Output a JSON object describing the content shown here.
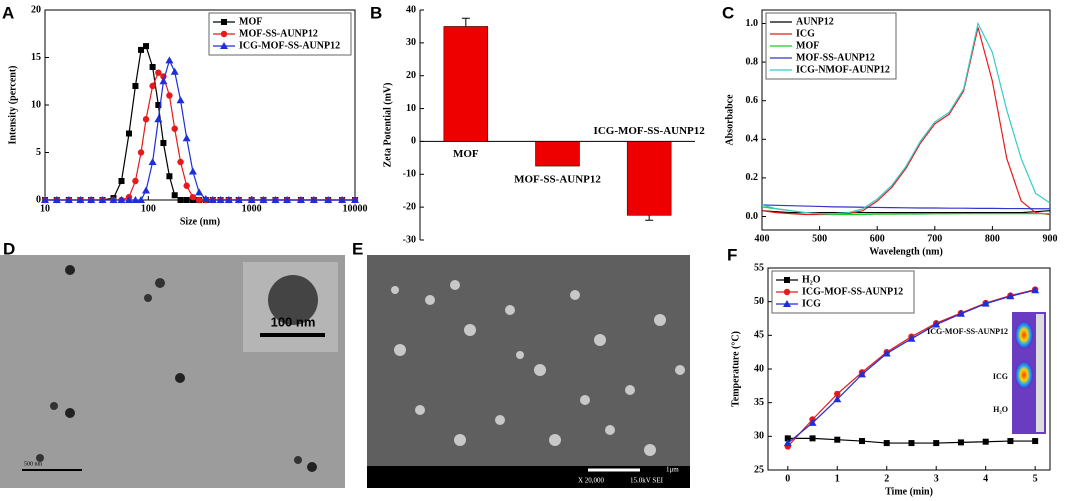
{
  "chart_data": [
    {
      "panel": "A",
      "type": "line",
      "xscale": "log",
      "xlabel": "Size (nm)",
      "ylabel": "Intensity (percent)",
      "xlim": [
        10,
        10000
      ],
      "xticks": [
        10,
        100,
        1000,
        10000
      ],
      "ylim": [
        0,
        20
      ],
      "yticks": [
        0,
        5,
        10,
        15,
        20
      ],
      "grid": false,
      "legend": "top-right",
      "x": [
        10,
        13,
        17,
        22,
        28,
        36,
        46,
        55,
        65,
        75,
        85,
        95,
        110,
        125,
        140,
        160,
        180,
        205,
        235,
        270,
        310,
        360,
        420,
        500,
        600,
        750,
        1000,
        1300,
        1700,
        2200,
        3000,
        4000,
        5500,
        7500,
        10000
      ],
      "series": [
        {
          "name": "MOF",
          "color": "#000000",
          "marker": "square",
          "values": [
            0,
            0,
            0,
            0,
            0,
            0,
            0.2,
            2,
            7,
            12,
            15.8,
            16.2,
            14,
            10,
            6,
            2.5,
            0.5,
            0,
            0,
            0,
            0,
            0,
            0,
            0,
            0,
            0,
            0,
            0,
            0,
            0,
            0,
            0,
            0,
            0,
            0
          ]
        },
        {
          "name": "MOF-SS-AUNP12",
          "color": "#e8191b",
          "marker": "circle",
          "values": [
            0,
            0,
            0,
            0,
            0,
            0,
            0,
            0,
            0.3,
            2,
            5,
            8.5,
            12,
            13.4,
            13,
            11,
            7.5,
            4,
            1.5,
            0.3,
            0,
            0,
            0,
            0,
            0,
            0,
            0,
            0,
            0,
            0,
            0,
            0,
            0,
            0,
            0
          ]
        },
        {
          "name": "ICG-MOF-SS-AUNP12",
          "color": "#1f2fd8",
          "marker": "triangle",
          "values": [
            0,
            0,
            0,
            0,
            0,
            0,
            0,
            0,
            0,
            0,
            0,
            1,
            4,
            8.5,
            12.5,
            14.7,
            13.5,
            10.5,
            6.5,
            3,
            0.8,
            0.1,
            0,
            0,
            0,
            0,
            0,
            0,
            0,
            0,
            0,
            0,
            0,
            0,
            0
          ]
        }
      ]
    },
    {
      "panel": "B",
      "type": "bar",
      "ylabel": "Zeta Potential (mV)",
      "color": "#ee0000",
      "categories": [
        "MOF",
        "MOF-SS-AUNP12",
        "ICG-MOF-SS-AUNP12"
      ],
      "values": [
        35,
        -7.5,
        -22.5
      ],
      "errors": [
        2.5,
        null,
        1.5
      ],
      "ylim": [
        -30,
        40
      ],
      "yticks": [
        -30,
        -20,
        -10,
        0,
        10,
        20,
        30,
        40
      ],
      "grid": false
    },
    {
      "panel": "C",
      "type": "line",
      "xlabel": "Wavelength (nm)",
      "ylabel": "Absorbabce",
      "xlim": [
        400,
        900
      ],
      "xticks": [
        400,
        500,
        600,
        700,
        800,
        900
      ],
      "ylim": [
        -0.07,
        1.07
      ],
      "yticks": [
        {
          "value": 0,
          "label": "0.0"
        },
        0.2,
        0.4,
        0.6,
        0.8,
        {
          "value": 1,
          "label": "1.0"
        }
      ],
      "grid": false,
      "legend": "top-left",
      "x": [
        400,
        425,
        450,
        475,
        500,
        525,
        550,
        575,
        600,
        625,
        650,
        675,
        700,
        725,
        750,
        775,
        800,
        825,
        850,
        875,
        900
      ],
      "series": [
        {
          "name": "AUNP12",
          "color": "#000000",
          "values": [
            0.03,
            0.025,
            0.02,
            0.02,
            0.02,
            0.02,
            0.02,
            0.02,
            0.02,
            0.02,
            0.02,
            0.02,
            0.02,
            0.02,
            0.02,
            0.02,
            0.02,
            0.02,
            0.02,
            0.025,
            0.03
          ]
        },
        {
          "name": "ICG",
          "color": "#e8191b",
          "values": [
            0.03,
            0.02,
            0.015,
            0.01,
            0.01,
            0.01,
            0.015,
            0.03,
            0.08,
            0.15,
            0.25,
            0.38,
            0.48,
            0.53,
            0.65,
            0.98,
            0.7,
            0.3,
            0.08,
            0.02,
            0.01
          ]
        },
        {
          "name": "MOF",
          "color": "#22cc22",
          "values": [
            0.05,
            0.04,
            0.03,
            0.02,
            0.015,
            0.01,
            0.01,
            0.01,
            0.012,
            0.012,
            0.013,
            0.013,
            0.014,
            0.014,
            0.015,
            0.015,
            0.015,
            0.015,
            0.015,
            0.015,
            0.015
          ]
        },
        {
          "name": "MOF-SS-AUNP12",
          "color": "#3333cc",
          "values": [
            0.06,
            0.058,
            0.056,
            0.054,
            0.052,
            0.05,
            0.049,
            0.048,
            0.047,
            0.046,
            0.045,
            0.044,
            0.044,
            0.043,
            0.043,
            0.042,
            0.042,
            0.041,
            0.041,
            0.04,
            0.04
          ]
        },
        {
          "name": "ICG-NMOF-AUNP12",
          "color": "#33cccc",
          "values": [
            0.06,
            0.04,
            0.03,
            0.02,
            0.015,
            0.015,
            0.02,
            0.04,
            0.09,
            0.16,
            0.26,
            0.39,
            0.49,
            0.54,
            0.66,
            1.0,
            0.85,
            0.55,
            0.3,
            0.12,
            0.07
          ]
        }
      ]
    },
    {
      "panel": "F",
      "type": "line",
      "xlabel": "Time (min)",
      "ylabel": "Temperature (°C)",
      "xlim": [
        -0.4,
        5.3
      ],
      "xticks": [
        0,
        1,
        2,
        3,
        4,
        5
      ],
      "ylim": [
        25,
        55
      ],
      "yticks": [
        25,
        30,
        35,
        40,
        45,
        50,
        55
      ],
      "grid": false,
      "legend": "top-left",
      "inset_labels": [
        "ICG-MOF-SS-AUNP12",
        "ICG",
        "H₂O"
      ],
      "x": [
        0,
        0.5,
        1,
        1.5,
        2,
        2.5,
        3,
        3.5,
        4,
        4.5,
        5
      ],
      "series": [
        {
          "name": "H₂O",
          "color": "#000000",
          "marker": "square",
          "values": [
            29.7,
            29.7,
            29.5,
            29.3,
            29.0,
            29.0,
            29.0,
            29.1,
            29.2,
            29.3,
            29.3
          ]
        },
        {
          "name": "ICG-MOF-SS-AUNP12",
          "color": "#e8191b",
          "marker": "circle",
          "values": [
            28.5,
            32.5,
            36.3,
            39.5,
            42.5,
            44.8,
            46.8,
            48.3,
            49.8,
            50.9,
            51.8
          ]
        },
        {
          "name": "ICG",
          "color": "#1f2fd8",
          "marker": "triangle",
          "values": [
            29,
            32,
            35.5,
            39.2,
            42.3,
            44.5,
            46.6,
            48.2,
            49.7,
            50.8,
            51.7
          ]
        }
      ]
    }
  ],
  "images": [
    {
      "panel": "D",
      "scale_bar": "500 nm",
      "inset_scale_bar": "100 nm"
    },
    {
      "panel": "E",
      "magnification": "X 20,000",
      "voltage": "15.0kV SEI",
      "scale_bar": "1μm"
    }
  ]
}
